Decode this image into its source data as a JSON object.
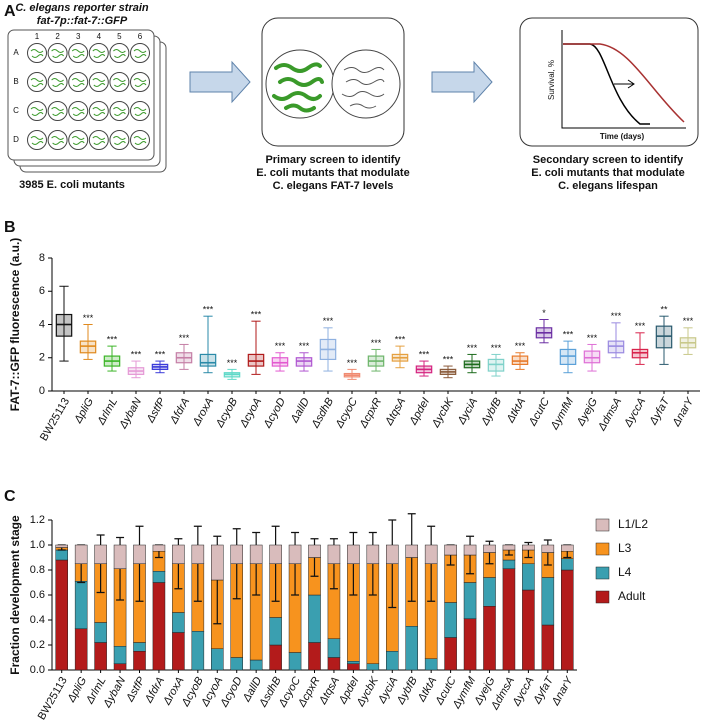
{
  "schematic": {
    "panel_label": "A",
    "plate_title": "C. elegans reporter strain",
    "plate_subtitle": "fat-7p::fat-7::GFP",
    "plate_columns": [
      "1",
      "2",
      "3",
      "4",
      "5",
      "6"
    ],
    "plate_rows": [
      "A",
      "B",
      "C",
      "D"
    ],
    "plate_caption": "3985 E. coli mutants",
    "primary_caption": [
      "Primary screen to identify",
      "E. coli mutants that modulate",
      "C. elegans FAT-7 levels"
    ],
    "secondary_caption": [
      "Secondary screen to identify",
      "E. coli mutants that modulate",
      "C. elegans lifespan"
    ],
    "survival_ylabel": "Survival, %",
    "survival_xlabel": "Time (days)"
  },
  "chart_data": [
    {
      "type": "box",
      "panel_label": "B",
      "ylabel": "FAT-7::GFP fluorescence (a.u.)",
      "categories": [
        "BW25113",
        "ΔpliG",
        "ΔrlmL",
        "ΔybaN",
        "ΔstfP",
        "ΔfdrA",
        "ΔroxA",
        "ΔcyoB",
        "ΔcyoA",
        "ΔcyoD",
        "ΔallD",
        "ΔsdhB",
        "ΔcyoC",
        "ΔcpxR",
        "ΔtqsA",
        "ΔpdeI",
        "ΔycbK",
        "ΔyciA",
        "ΔybfB",
        "ΔtktA",
        "ΔcutC",
        "ΔymfM",
        "ΔyejG",
        "ΔdmsA",
        "ΔyccA",
        "ΔyfaT",
        "ΔnarY"
      ],
      "colors": [
        "#111111",
        "#e08a1e",
        "#3cb528",
        "#e59ad6",
        "#3b3bd9",
        "#c57fa6",
        "#2a8aa8",
        "#5fd9c8",
        "#b01a1a",
        "#e35ad0",
        "#b057d1",
        "#8fb1e0",
        "#f08a70",
        "#6db56a",
        "#e5a040",
        "#d4237f",
        "#8a5a3a",
        "#1c6b1c",
        "#7ed1c9",
        "#e87a2a",
        "#6b2fa3",
        "#5aa0d8",
        "#de6fd6",
        "#9a8ae0",
        "#d8234b",
        "#2a5a6e",
        "#c8c88a"
      ],
      "min": [
        1.8,
        1.9,
        1.2,
        0.8,
        1.1,
        1.3,
        1.1,
        0.7,
        1.0,
        1.2,
        1.2,
        1.2,
        0.7,
        1.2,
        1.4,
        0.9,
        0.8,
        1.1,
        0.9,
        1.3,
        2.9,
        1.1,
        1.2,
        2.0,
        1.6,
        1.6,
        2.2
      ],
      "q1": [
        3.3,
        2.3,
        1.5,
        1.0,
        1.3,
        1.7,
        1.5,
        0.85,
        1.5,
        1.5,
        1.5,
        1.9,
        0.85,
        1.5,
        1.8,
        1.1,
        1.0,
        1.4,
        1.2,
        1.6,
        3.2,
        1.6,
        1.7,
        2.3,
        2.0,
        2.6,
        2.6
      ],
      "median": [
        4.0,
        2.7,
        1.8,
        1.2,
        1.45,
        2.0,
        1.7,
        1.0,
        1.8,
        1.7,
        1.8,
        2.5,
        0.95,
        1.8,
        2.0,
        1.3,
        1.15,
        1.6,
        1.6,
        1.8,
        3.5,
        2.1,
        2.0,
        2.7,
        2.3,
        3.3,
        2.9
      ],
      "q3": [
        4.6,
        3.0,
        2.1,
        1.4,
        1.6,
        2.3,
        2.2,
        1.1,
        2.2,
        2.0,
        2.0,
        3.1,
        1.05,
        2.1,
        2.2,
        1.5,
        1.3,
        1.8,
        1.9,
        2.1,
        3.8,
        2.5,
        2.4,
        3.0,
        2.5,
        3.9,
        3.2
      ],
      "max": [
        6.3,
        4.0,
        2.7,
        1.8,
        1.8,
        2.8,
        4.5,
        1.3,
        4.2,
        2.3,
        2.3,
        3.8,
        1.3,
        2.5,
        2.7,
        1.8,
        1.5,
        2.2,
        2.2,
        2.3,
        4.3,
        3.0,
        2.8,
        4.1,
        3.5,
        4.5,
        3.8
      ],
      "significance": [
        null,
        "***",
        "***",
        "***",
        "***",
        "***",
        "***",
        "***",
        "***",
        "***",
        "***",
        "***",
        "***",
        "***",
        "***",
        "***",
        "***",
        "***",
        "***",
        "***",
        "*",
        "***",
        "***",
        "***",
        "***",
        "**",
        "***"
      ],
      "ylim": [
        0,
        8
      ],
      "yticks": [
        0,
        2,
        4,
        6,
        8
      ]
    },
    {
      "type": "stacked_bar",
      "panel_label": "C",
      "ylabel": "Fraction development stage",
      "categories": [
        "BW25113",
        "ΔpliG",
        "ΔrlmL",
        "ΔybaN",
        "ΔstfP",
        "ΔfdrA",
        "ΔroxA",
        "ΔcyoB",
        "ΔcyoA",
        "ΔcyoD",
        "ΔallD",
        "ΔsdhB",
        "ΔcyoC",
        "ΔcpxR",
        "ΔtqsA",
        "ΔpdeI",
        "ΔycbK",
        "ΔyciA",
        "ΔybfB",
        "ΔtktA",
        "ΔcutC",
        "ΔymfM",
        "ΔyejG",
        "ΔdmsA",
        "ΔyccA",
        "ΔyfaT",
        "ΔnarY"
      ],
      "series": [
        {
          "name": "Adult",
          "color": "#b31b1b",
          "values": [
            0.88,
            0.33,
            0.22,
            0.05,
            0.15,
            0.7,
            0.3,
            0,
            0,
            0,
            0,
            0.2,
            0,
            0.22,
            0.1,
            0.05,
            0,
            0,
            0,
            0,
            0.26,
            0.41,
            0.51,
            0.81,
            0.64,
            0.36,
            0.8
          ]
        },
        {
          "name": "L4",
          "color": "#3a9fb0",
          "values": [
            0.08,
            0.38,
            0.16,
            0.14,
            0.07,
            0.09,
            0.16,
            0.31,
            0.17,
            0.1,
            0.08,
            0.22,
            0.14,
            0.38,
            0.15,
            0.02,
            0.05,
            0.15,
            0.35,
            0.09,
            0.28,
            0.29,
            0.23,
            0.07,
            0.21,
            0.38,
            0.09
          ]
        },
        {
          "name": "L3",
          "color": "#f7931e",
          "values": [
            0.02,
            0.14,
            0.47,
            0.62,
            0.63,
            0.16,
            0.39,
            0.54,
            0.55,
            0.75,
            0.77,
            0.43,
            0.71,
            0.3,
            0.6,
            0.78,
            0.8,
            0.7,
            0.55,
            0.76,
            0.38,
            0.22,
            0.2,
            0.08,
            0.11,
            0.2,
            0.06
          ],
          "errors": [
            0.02,
            0.15,
            0.23,
            0.25,
            0.3,
            0.05,
            0.2,
            0.3,
            0.35,
            0.28,
            0.25,
            0.3,
            0.25,
            0.15,
            0.2,
            0.25,
            0.25,
            0.35,
            0.35,
            0.3,
            0.08,
            0.15,
            0.09,
            0.04,
            0.06,
            0.1,
            0.05
          ]
        },
        {
          "name": "L1/L2",
          "color": "#d9bcbc",
          "values": [
            0.02,
            0.15,
            0.15,
            0.19,
            0.15,
            0.05,
            0.15,
            0.15,
            0.28,
            0.15,
            0.15,
            0.15,
            0.15,
            0.1,
            0.15,
            0.15,
            0.15,
            0.15,
            0.1,
            0.15,
            0.08,
            0.08,
            0.06,
            0.04,
            0.04,
            0.06,
            0.05
          ]
        }
      ],
      "ylim": [
        0,
        1.2
      ],
      "yticks": [
        {
          "value": 0,
          "label": "0.0"
        },
        0.2,
        0.4,
        0.6,
        0.8,
        {
          "value": 1,
          "label": "1.0"
        },
        1.2
      ]
    }
  ]
}
